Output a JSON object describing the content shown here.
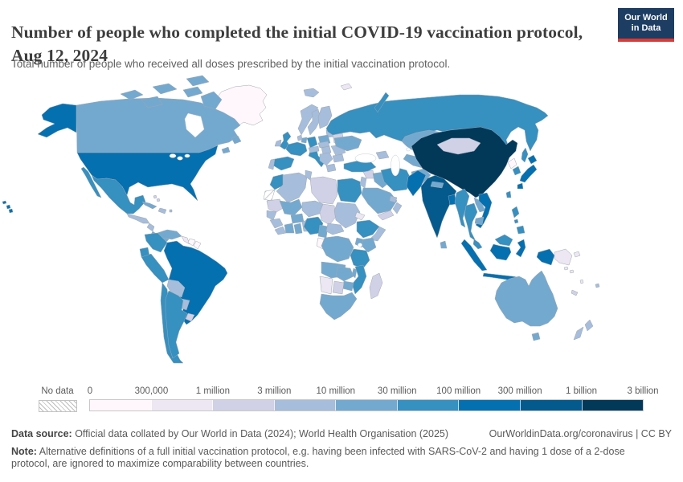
{
  "header": {
    "title": "Number of people who completed the initial COVID-19 vaccination protocol, Aug 12, 2024",
    "subtitle": "Total number of people who received all doses prescribed by the initial vaccination protocol."
  },
  "logo": {
    "line1": "Our World",
    "line2": "in Data",
    "bg": "#1d3d63",
    "accent": "#d73b36"
  },
  "legend": {
    "no_data_label": "No data",
    "tick_labels": [
      "0",
      "300,000",
      "1 million",
      "3 million",
      "10 million",
      "30 million",
      "100 million",
      "300 million",
      "1 billion",
      "3 billion"
    ],
    "colors": [
      "#fff7fb",
      "#ece7f2",
      "#d0d1e6",
      "#a6bddb",
      "#74a9cf",
      "#3690c0",
      "#0570b0",
      "#045a8d",
      "#023858"
    ]
  },
  "footer": {
    "source_label": "Data source:",
    "source_text": " Official data collated by Our World in Data (2024); World Health Organisation (2025)",
    "credit": "OurWorldinData.org/coronavirus | CC BY",
    "note_label": "Note:",
    "note_text": " Alternative definitions of a full initial vaccination protocol, e.g. having been infected with SARS-CoV-2 and having 1 dose of a 2-dose protocol, are ignored to maximize comparability between countries."
  },
  "chart_data": {
    "type": "choropleth-map",
    "title": "Number of people who completed the initial COVID-19 vaccination protocol",
    "date": "Aug 12, 2024",
    "scale_type": "log-binned",
    "legend_boundaries": [
      0,
      300000,
      1000000,
      3000000,
      10000000,
      30000000,
      100000000,
      300000000,
      1000000000,
      3000000000
    ],
    "bucket_ranges": [
      "0–300,000",
      "300,000–1 million",
      "1–3 million",
      "3–10 million",
      "10–30 million",
      "30–100 million",
      "100–300 million",
      "300 million–1 billion",
      "1–3 billion"
    ],
    "country_buckets": {
      "Greenland": 0,
      "Suriname": 0,
      "French Guiana": 0,
      "Gabon": 0,
      "North Korea": 0,
      "Guyana": 1,
      "Papua New Guinea": 1,
      "Namibia": 1,
      "Eritrea": 1,
      "Svalbard": 1,
      "Solomon Islands": 1,
      "Vanuatu": 1,
      "Libya": 2,
      "Chad": 2,
      "Mauritania": 2,
      "Belarus": 2,
      "Estonia": 2,
      "Madagascar": 2,
      "Botswana": 2,
      "Mongolia": 2,
      "Yemen": 2,
      "Uruguay": 2,
      "Syria": 2,
      "Bahamas": 2,
      "New Caledonia": 2,
      "Algeria": 3,
      "Tunisia": 3,
      "Niger": 3,
      "Sudan": 3,
      "Somalia": 3,
      "Central African Republic": 3,
      "Iceland": 3,
      "Ireland": 3,
      "Norway": 3,
      "Sweden": 3,
      "Finland": 3,
      "Denmark": 3,
      "Latvia": 3,
      "Czechia": 3,
      "Hungary": 3,
      "Serbia": 3,
      "Romania": 3,
      "Bulgaria": 3,
      "Greece": 3,
      "Georgia": 3,
      "Jordan": 3,
      "Oman": 3,
      "United Arab Emirates": 3,
      "Tajikistan": 3,
      "New Zealand": 3,
      "Bolivia": 3,
      "Paraguay": 3,
      "Haiti": 3,
      "Guatemala": 3,
      "Honduras": 3,
      "Nicaragua": 3,
      "Austria": 3,
      "Portugal": 3,
      "Senegal": 3,
      "Guinea": 3,
      "Liberia": 3,
      "Benin": 3,
      "Fiji": 3,
      "Canada": 4,
      "Poland": 4,
      "Netherlands": 4,
      "Ukraine": 4,
      "Kazakhstan": 4,
      "Uzbekistan": 4,
      "Afghanistan": 4,
      "Iraq": 4,
      "Saudi Arabia": 4,
      "Nepal": 4,
      "Sri Lanka": 4,
      "Laos": 4,
      "Cambodia": 4,
      "Australia": 4,
      "Mali": 4,
      "Burkina Faso": 4,
      "Cote d'Ivoire": 4,
      "Ghana": 4,
      "Cameroon": 4,
      "Kenya": 4,
      "Uganda": 4,
      "Democratic Republic of Congo": 4,
      "Angola": 4,
      "Zambia": 4,
      "Zimbabwe": 4,
      "Malawi": 4,
      "South Africa": 4,
      "Cuba": 4,
      "Panama": 4,
      "Venezuela": 4,
      "Newfoundland": 4,
      "Russia": 5,
      "United Kingdom": 5,
      "France": 5,
      "Spain": 5,
      "Germany": 5,
      "Italy": 5,
      "Turkey": 5,
      "Iran": 5,
      "Morocco": 5,
      "Egypt": 5,
      "Nigeria": 5,
      "Ethiopia": 5,
      "Tanzania": 5,
      "Mozambique": 5,
      "Mexico": 5,
      "Colombia": 5,
      "Ecuador": 5,
      "Peru": 5,
      "Chile": 5,
      "Argentina": 5,
      "South Korea": 5,
      "Taiwan": 5,
      "Myanmar": 5,
      "Thailand": 5,
      "Philippines": 5,
      "Malaysia": 5,
      "United States": 6,
      "Brazil": 6,
      "Pakistan": 6,
      "Bangladesh": 6,
      "Japan": 6,
      "Vietnam": 6,
      "Indonesia": 6,
      "India": 7,
      "China": 8,
      "Western Sahara": "no-data"
    },
    "no_data": [
      "Western Sahara"
    ]
  }
}
